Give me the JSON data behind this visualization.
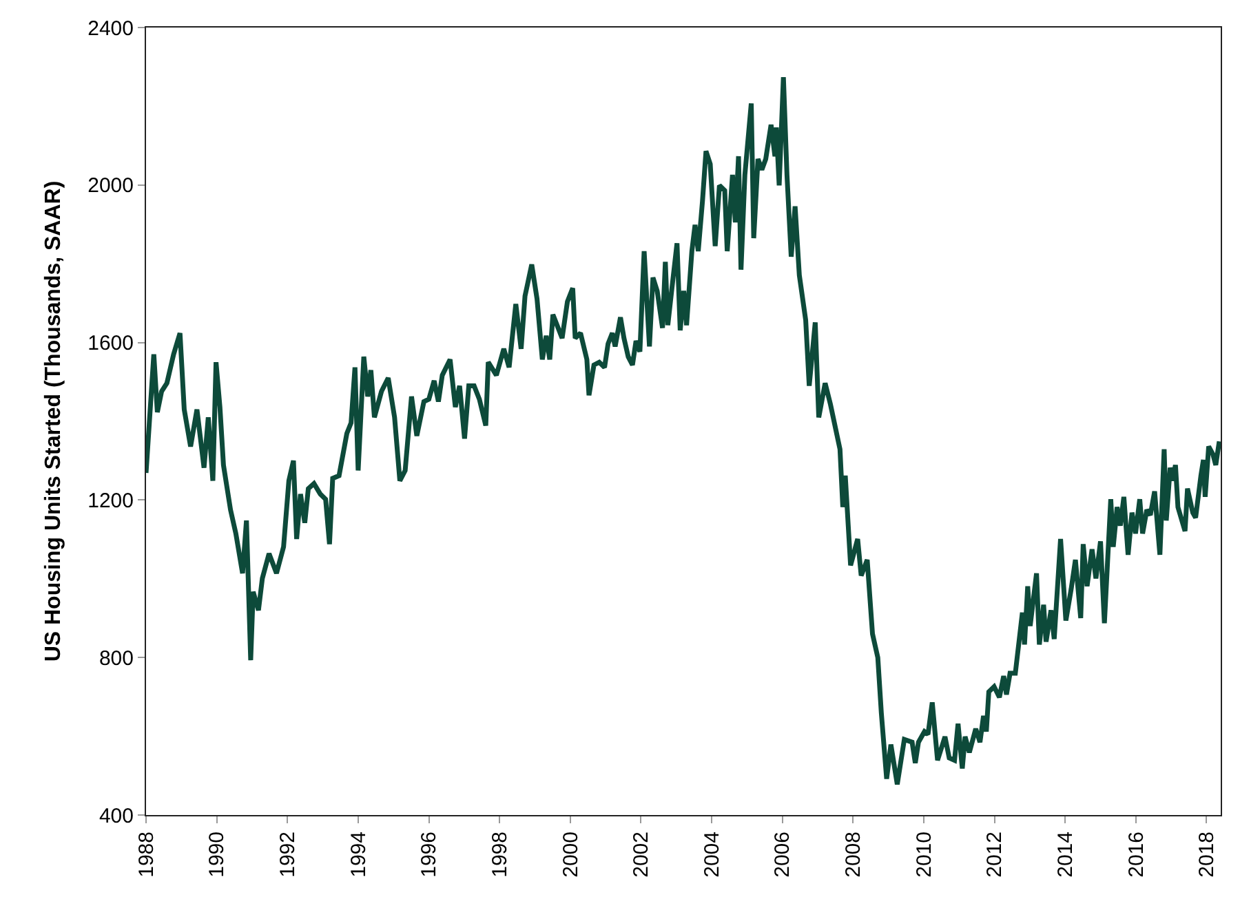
{
  "chart_data": {
    "type": "line",
    "ylabel": "US Housing Units Started (Thousands, SAAR)",
    "xlim": [
      1988,
      2018.4
    ],
    "xticks": [
      1988,
      1990,
      1992,
      1994,
      1996,
      1998,
      2000,
      2002,
      2004,
      2006,
      2008,
      2010,
      2012,
      2014,
      2016,
      2018
    ],
    "ylim": [
      400,
      2400
    ],
    "yticks": [
      400,
      800,
      1200,
      1600,
      2000,
      2400
    ],
    "marker": "none",
    "line_style": "solid",
    "series": [
      {
        "color": "#0d4a3a",
        "x": [
          1988.0,
          1988.22,
          1988.32,
          1988.44,
          1988.59,
          1988.78,
          1988.96,
          1989.08,
          1989.26,
          1989.44,
          1989.64,
          1989.76,
          1989.89,
          1989.98,
          1990.09,
          1990.19,
          1990.39,
          1990.54,
          1990.73,
          1990.84,
          1990.96,
          1991.03,
          1991.18,
          1991.29,
          1991.48,
          1991.69,
          1991.89,
          1992.04,
          1992.17,
          1992.26,
          1992.37,
          1992.49,
          1992.59,
          1992.75,
          1992.93,
          1993.08,
          1993.19,
          1993.28,
          1993.46,
          1993.68,
          1993.8,
          1993.91,
          1994.0,
          1994.16,
          1994.27,
          1994.36,
          1994.46,
          1994.66,
          1994.85,
          1995.03,
          1995.18,
          1995.33,
          1995.51,
          1995.66,
          1995.86,
          1996.0,
          1996.15,
          1996.27,
          1996.38,
          1996.6,
          1996.75,
          1996.87,
          1997.01,
          1997.13,
          1997.28,
          1997.43,
          1997.61,
          1997.68,
          1997.91,
          1998.12,
          1998.27,
          1998.46,
          1998.61,
          1998.72,
          1998.91,
          1999.06,
          1999.21,
          1999.32,
          1999.42,
          1999.51,
          1999.77,
          1999.92,
          2000.07,
          2000.14,
          2000.29,
          2000.47,
          2000.53,
          2000.67,
          2000.82,
          2000.97,
          2001.07,
          2001.19,
          2001.27,
          2001.42,
          2001.52,
          2001.64,
          2001.76,
          2001.86,
          2001.97,
          2002.09,
          2002.24,
          2002.34,
          2002.46,
          2002.61,
          2002.69,
          2002.76,
          2002.91,
          2003.02,
          2003.11,
          2003.21,
          2003.29,
          2003.44,
          2003.53,
          2003.62,
          2003.74,
          2003.84,
          2003.96,
          2004.1,
          2004.22,
          2004.37,
          2004.44,
          2004.59,
          2004.67,
          2004.76,
          2004.83,
          2004.94,
          2005.12,
          2005.19,
          2005.31,
          2005.42,
          2005.53,
          2005.68,
          2005.79,
          2005.83,
          2005.91,
          2006.03,
          2006.13,
          2006.25,
          2006.36,
          2006.48,
          2006.66,
          2006.76,
          2006.93,
          2007.03,
          2007.21,
          2007.36,
          2007.63,
          2007.71,
          2007.78,
          2007.93,
          2008.13,
          2008.23,
          2008.4,
          2008.55,
          2008.7,
          2008.8,
          2008.95,
          2009.07,
          2009.25,
          2009.45,
          2009.67,
          2009.76,
          2009.85,
          2010.02,
          2010.12,
          2010.24,
          2010.39,
          2010.6,
          2010.72,
          2010.87,
          2010.97,
          2011.09,
          2011.17,
          2011.29,
          2011.47,
          2011.59,
          2011.69,
          2011.77,
          2011.84,
          2011.99,
          2012.14,
          2012.26,
          2012.34,
          2012.44,
          2012.59,
          2012.79,
          2012.85,
          2012.94,
          2013.01,
          2013.19,
          2013.27,
          2013.39,
          2013.46,
          2013.6,
          2013.69,
          2013.87,
          2014.02,
          2014.17,
          2014.29,
          2014.44,
          2014.51,
          2014.62,
          2014.76,
          2014.87,
          2015.0,
          2015.11,
          2015.29,
          2015.36,
          2015.47,
          2015.56,
          2015.66,
          2015.78,
          2015.89,
          2015.99,
          2016.11,
          2016.19,
          2016.31,
          2016.41,
          2016.53,
          2016.68,
          2016.8,
          2016.86,
          2016.97,
          2017.04,
          2017.12,
          2017.19,
          2017.39,
          2017.46,
          2017.61,
          2017.69,
          2017.84,
          2017.91,
          2017.96,
          2018.06,
          2018.18,
          2018.26,
          2018.36
        ],
        "values": [
          1269,
          1570,
          1423,
          1476,
          1497,
          1570,
          1624,
          1430,
          1336,
          1430,
          1282,
          1410,
          1249,
          1550,
          1436,
          1289,
          1175,
          1115,
          1014,
          1148,
          793,
          967,
          920,
          1001,
          1064,
          1014,
          1081,
          1249,
          1300,
          1101,
          1215,
          1142,
          1229,
          1242,
          1215,
          1202,
          1088,
          1255,
          1262,
          1369,
          1396,
          1537,
          1275,
          1564,
          1463,
          1530,
          1410,
          1476,
          1510,
          1410,
          1249,
          1275,
          1463,
          1363,
          1450,
          1456,
          1503,
          1450,
          1517,
          1557,
          1436,
          1490,
          1356,
          1490,
          1490,
          1456,
          1389,
          1550,
          1517,
          1584,
          1537,
          1698,
          1584,
          1718,
          1798,
          1711,
          1557,
          1617,
          1557,
          1671,
          1611,
          1704,
          1738,
          1611,
          1624,
          1557,
          1466,
          1543,
          1550,
          1537,
          1597,
          1624,
          1590,
          1664,
          1611,
          1564,
          1543,
          1604,
          1577,
          1832,
          1590,
          1765,
          1731,
          1637,
          1805,
          1644,
          1765,
          1852,
          1631,
          1731,
          1644,
          1832,
          1899,
          1832,
          1959,
          2086,
          2053,
          1845,
          1999,
          1986,
          1832,
          2026,
          1905,
          2073,
          1785,
          2026,
          2207,
          1865,
          2066,
          2039,
          2066,
          2153,
          2073,
          2146,
          1999,
          2274,
          2026,
          1818,
          1946,
          1771,
          1657,
          1490,
          1651,
          1410,
          1497,
          1443,
          1329,
          1182,
          1262,
          1034,
          1101,
          1008,
          1048,
          860,
          800,
          659,
          492,
          579,
          478,
          592,
          585,
          532,
          585,
          612,
          605,
          686,
          539,
          599,
          545,
          539,
          632,
          518,
          599,
          559,
          619,
          585,
          652,
          612,
          713,
          726,
          699,
          753,
          706,
          760,
          760,
          914,
          833,
          981,
          880,
          1014,
          833,
          934,
          840,
          920,
          847,
          1101,
          894,
          974,
          1048,
          900,
          1088,
          981,
          1075,
          1001,
          1095,
          887,
          1202,
          1081,
          1182,
          1135,
          1208,
          1061,
          1168,
          1115,
          1202,
          1115,
          1175,
          1162,
          1222,
          1061,
          1329,
          1148,
          1282,
          1249,
          1289,
          1182,
          1121,
          1229,
          1168,
          1155,
          1262,
          1302,
          1208,
          1336,
          1316,
          1289,
          1349
        ]
      }
    ]
  }
}
